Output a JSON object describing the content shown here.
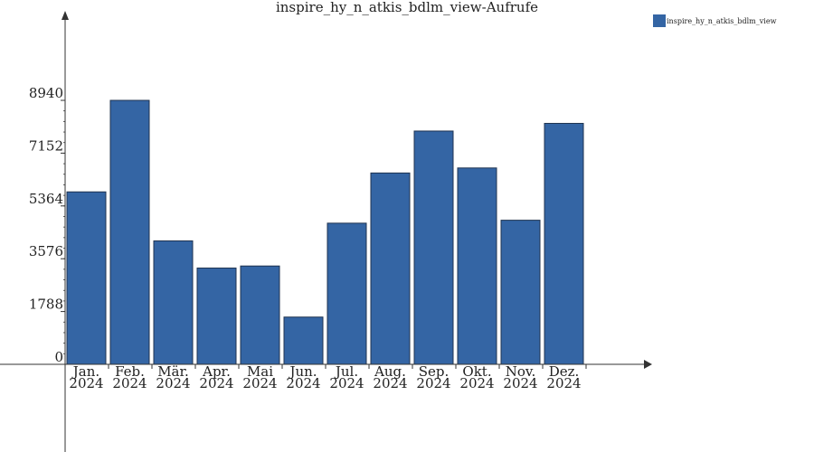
{
  "chart_data": {
    "type": "bar",
    "title": "inspire_hy_n_atkis_bdlm_view-Aufrufe",
    "xlabel": "",
    "ylabel": "",
    "categories": [
      [
        "Jan.",
        "2024"
      ],
      [
        "Feb.",
        "2024"
      ],
      [
        "Mär.",
        "2024"
      ],
      [
        "Apr.",
        "2024"
      ],
      [
        "Mai",
        "2024"
      ],
      [
        "Jun.",
        "2024"
      ],
      [
        "Jul.",
        "2024"
      ],
      [
        "Aug.",
        "2024"
      ],
      [
        "Sep.",
        "2024"
      ],
      [
        "Okt.",
        "2024"
      ],
      [
        "Nov.",
        "2024"
      ],
      [
        "Dez.",
        "2024"
      ]
    ],
    "series": [
      {
        "name": "inspire_hy_n_atkis_bdlm_view",
        "color": "#3465a4",
        "values": [
          5840,
          8940,
          4180,
          3260,
          3330,
          1600,
          4780,
          6480,
          7900,
          6650,
          4880,
          8160
        ]
      }
    ],
    "yticks": [
      0,
      1788,
      3576,
      5364,
      7152,
      8940
    ],
    "ylim": [
      0,
      12000
    ],
    "grid": false,
    "legend": "top-right"
  }
}
